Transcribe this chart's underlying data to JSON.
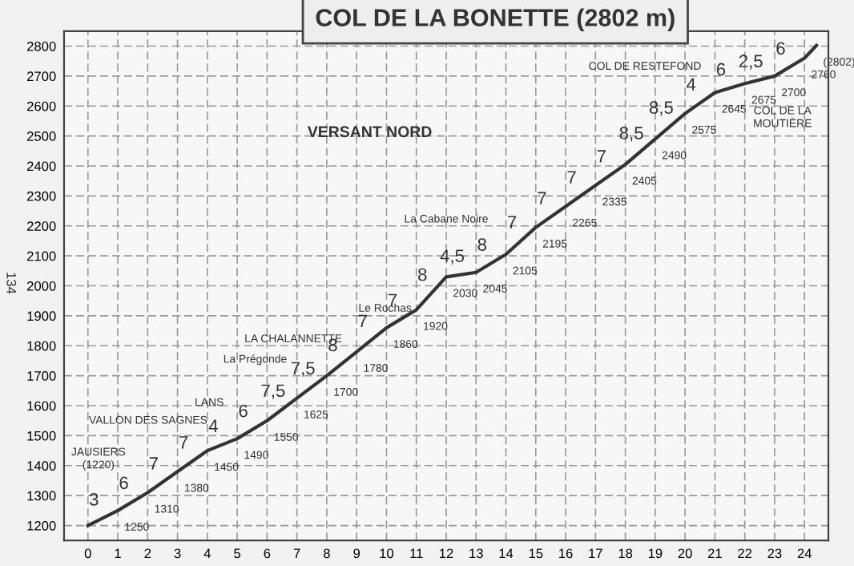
{
  "chart_data": {
    "type": "line",
    "title": "COL DE LA BONETTE (2802 m)",
    "x": [
      0,
      1,
      2,
      3,
      4,
      5,
      6,
      7,
      8,
      9,
      10,
      11,
      12,
      13,
      14,
      15,
      16,
      17,
      18,
      19,
      20,
      21,
      22,
      23,
      24,
      24.4
    ],
    "series": [
      {
        "color": "#333333",
        "values": [
          1200,
          1250,
          1310,
          1380,
          1450,
          1490,
          1550,
          1625,
          1700,
          1780,
          1860,
          1920,
          2030,
          2045,
          2105,
          2195,
          2265,
          2335,
          2405,
          2490,
          2575,
          2645,
          2675,
          2700,
          2760,
          2802
        ]
      }
    ],
    "value_labels": [
      null,
      "1250",
      "1310",
      "1380",
      "1450",
      "1490",
      "1550",
      "1625",
      "1700",
      "1780",
      "1860",
      "1920",
      "2030",
      "2045",
      "2105",
      "2195",
      "2265",
      "2335",
      "2405",
      "2490",
      "2575",
      "2645",
      "2675",
      "2700",
      "2760",
      "(2802)"
    ],
    "xlim": [
      -0.8,
      24.8
    ],
    "ylim": [
      1150,
      2850
    ],
    "xticks": [
      0,
      1,
      2,
      3,
      4,
      5,
      6,
      7,
      8,
      9,
      10,
      11,
      12,
      13,
      14,
      15,
      16,
      17,
      18,
      19,
      20,
      21,
      22,
      23,
      24
    ],
    "yticks": [
      1200,
      1300,
      1400,
      1500,
      1600,
      1700,
      1800,
      1900,
      2000,
      2100,
      2200,
      2300,
      2400,
      2500,
      2600,
      2700,
      2800
    ],
    "grid": true,
    "marker": "none",
    "line_style": "solid",
    "annotations": [
      {
        "text": "3",
        "x": 0.5,
        "y": 1225
      },
      {
        "text": "6",
        "x": 1.5,
        "y": 1280
      },
      {
        "text": "7",
        "x": 2.5,
        "y": 1345
      },
      {
        "text": "7",
        "x": 3.5,
        "y": 1415
      },
      {
        "text": "4",
        "x": 4.5,
        "y": 1470
      },
      {
        "text": "6",
        "x": 5.5,
        "y": 1520
      },
      {
        "text": "7,5",
        "x": 6.5,
        "y": 1587.5
      },
      {
        "text": "7,5",
        "x": 7.5,
        "y": 1662.5
      },
      {
        "text": "8",
        "x": 8.5,
        "y": 1740
      },
      {
        "text": "7",
        "x": 9.5,
        "y": 1820
      },
      {
        "text": "7",
        "x": 10.5,
        "y": 1890
      },
      {
        "text": "8",
        "x": 11.5,
        "y": 1975
      },
      {
        "text": "4,5",
        "x": 12.5,
        "y": 2037.5
      },
      {
        "text": "8",
        "x": 13.5,
        "y": 2075
      },
      {
        "text": "7",
        "x": 14.5,
        "y": 2150
      },
      {
        "text": "7",
        "x": 15.5,
        "y": 2230
      },
      {
        "text": "7",
        "x": 16.5,
        "y": 2300
      },
      {
        "text": "7",
        "x": 17.5,
        "y": 2370
      },
      {
        "text": "8,5",
        "x": 18.5,
        "y": 2447.5
      },
      {
        "text": "8,5",
        "x": 19.5,
        "y": 2532.5
      },
      {
        "text": "4",
        "x": 20.5,
        "y": 2610
      },
      {
        "text": "6",
        "x": 21.5,
        "y": 2660
      },
      {
        "text": "2,5",
        "x": 22.5,
        "y": 2687.5
      },
      {
        "text": "6",
        "x": 23.5,
        "y": 2730
      },
      "JAUSIERS\n(1220)",
      "VALLON DES SAGNES",
      "LANS",
      "LA CHALANNETTE",
      "La Prégonde",
      "Le Rochas",
      "La Cabane Noire",
      "COL DE RESTEFOND",
      "COL DE LA\nMOUTIÈRE",
      "VERSANT NORD",
      "134"
    ]
  }
}
